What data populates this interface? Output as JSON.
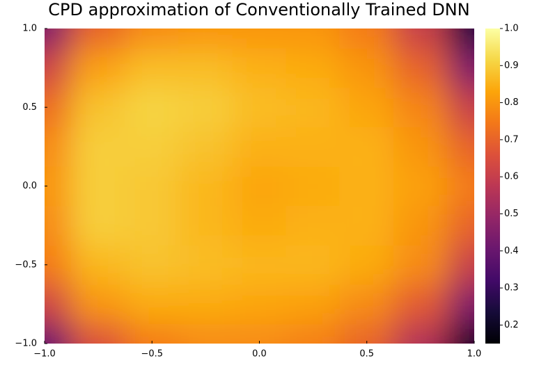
{
  "chart_data": {
    "type": "heatmap",
    "title": "CPD approximation of Conventionally Trained DNN",
    "x": [
      -1,
      -0.75,
      -0.5,
      -0.25,
      0,
      0.25,
      0.5,
      0.75,
      1
    ],
    "y": [
      -1,
      -0.75,
      -0.5,
      -0.25,
      0,
      0.25,
      0.5,
      0.75,
      1
    ],
    "z": [
      [
        0.4,
        0.65,
        0.75,
        0.78,
        0.78,
        0.76,
        0.7,
        0.55,
        0.2
      ],
      [
        0.62,
        0.8,
        0.84,
        0.84,
        0.83,
        0.82,
        0.78,
        0.68,
        0.45
      ],
      [
        0.75,
        0.86,
        0.88,
        0.87,
        0.86,
        0.86,
        0.84,
        0.78,
        0.6
      ],
      [
        0.78,
        0.9,
        0.89,
        0.86,
        0.84,
        0.85,
        0.85,
        0.8,
        0.7
      ],
      [
        0.8,
        0.9,
        0.89,
        0.86,
        0.83,
        0.84,
        0.85,
        0.82,
        0.75
      ],
      [
        0.78,
        0.9,
        0.9,
        0.88,
        0.85,
        0.85,
        0.85,
        0.8,
        0.7
      ],
      [
        0.72,
        0.88,
        0.91,
        0.9,
        0.87,
        0.86,
        0.83,
        0.77,
        0.6
      ],
      [
        0.62,
        0.82,
        0.87,
        0.87,
        0.85,
        0.84,
        0.8,
        0.7,
        0.45
      ],
      [
        0.45,
        0.7,
        0.78,
        0.8,
        0.8,
        0.8,
        0.75,
        0.6,
        0.25
      ]
    ],
    "xlim": [
      -1,
      1
    ],
    "ylim": [
      -1,
      1
    ],
    "xticks": [
      {
        "value": -1,
        "label": "−1.0"
      },
      {
        "value": -0.5,
        "label": "−0.5"
      },
      {
        "value": 0,
        "label": "0.0"
      },
      0.5,
      {
        "value": 1,
        "label": "1.0"
      }
    ],
    "yticks": [
      {
        "value": -1,
        "label": "−1.0"
      },
      {
        "value": -0.5,
        "label": "−0.5"
      },
      {
        "value": 0,
        "label": "0.0"
      },
      0.5,
      {
        "value": 1,
        "label": "1.0"
      }
    ],
    "clim": [
      0.15,
      1.0
    ],
    "cticks": [
      0.2,
      0.3,
      0.4,
      0.5,
      0.6,
      0.7,
      0.8,
      0.9,
      {
        "value": 1,
        "label": "1.0"
      }
    ],
    "colormap": [
      "#000004",
      "#160b39",
      "#420a68",
      "#6a176e",
      "#932667",
      "#bc3754",
      "#dd513a",
      "#f37819",
      "#fca50a",
      "#f6d746",
      "#fcffa4"
    ]
  }
}
